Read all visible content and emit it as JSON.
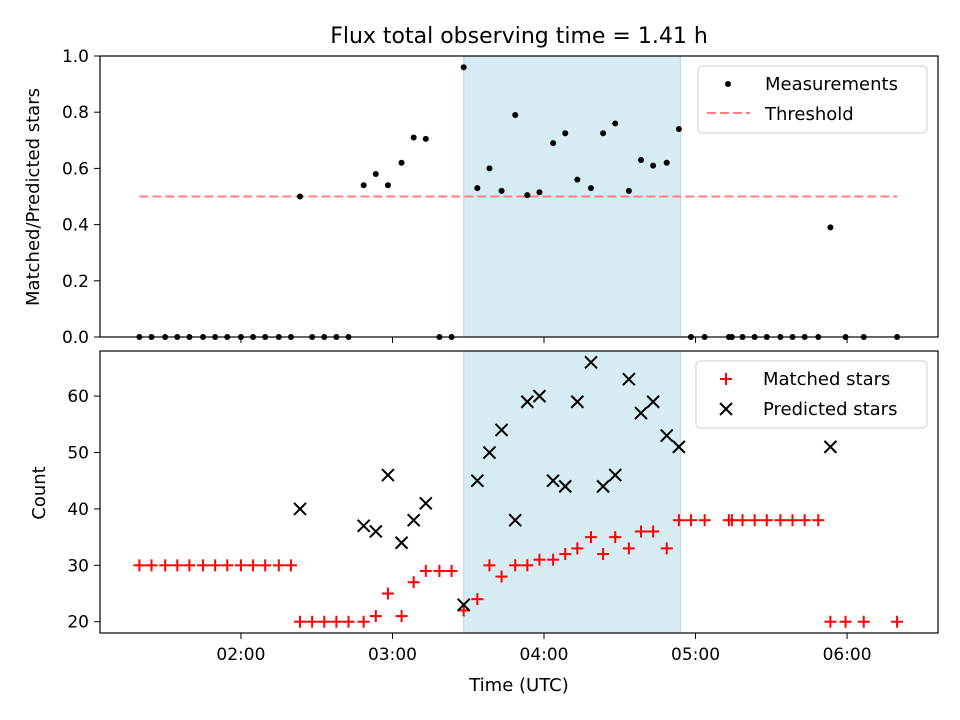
{
  "figure": {
    "title": "Flux total observing time = 1.41 h",
    "colors": {
      "measurement": "#000000",
      "threshold": "#ff7f7f",
      "matched": "#ff0000",
      "predicted": "#000000",
      "window_fill": "#add8e6"
    }
  },
  "chart_data": [
    {
      "type": "scatter",
      "title": "Flux total observing time = 1.41 h",
      "xlabel": "",
      "ylabel": "Matched/Predicted stars",
      "x_unit": "time (UTC, decimal hours)",
      "xlim": [
        1.07,
        6.6
      ],
      "ylim": [
        0,
        1.0
      ],
      "yticks": [
        0.0,
        0.2,
        0.4,
        0.6,
        0.8,
        1.0
      ],
      "ytick_labels": [
        "0.0",
        "0.2",
        "0.4",
        "0.6",
        "0.8",
        "1.0"
      ],
      "xticks": [
        2,
        3,
        4,
        5,
        6
      ],
      "xtick_labels": [
        "",
        "",
        "",
        "",
        ""
      ],
      "grid": false,
      "legend": "upper-right",
      "shaded_interval": [
        3.47,
        4.9
      ],
      "threshold": {
        "name": "Threshold",
        "style": "dashed",
        "x": [
          1.33,
          6.33
        ],
        "y": 0.5
      },
      "series": [
        {
          "name": "Measurements",
          "marker": "dot",
          "x": [
            1.33,
            1.41,
            1.5,
            1.58,
            1.66,
            1.75,
            1.83,
            1.91,
            2.0,
            2.08,
            2.16,
            2.25,
            2.33,
            2.39,
            2.47,
            2.55,
            2.63,
            2.71,
            2.81,
            2.89,
            2.97,
            3.06,
            3.14,
            3.22,
            3.31,
            3.39,
            3.47,
            3.56,
            3.64,
            3.72,
            3.81,
            3.89,
            3.97,
            4.06,
            4.14,
            4.22,
            4.31,
            4.39,
            4.47,
            4.56,
            4.64,
            4.72,
            4.81,
            4.89,
            4.97,
            5.06,
            5.22,
            5.24,
            5.31,
            5.39,
            5.47,
            5.56,
            5.64,
            5.72,
            5.81,
            5.89,
            5.99,
            6.11,
            6.33
          ],
          "y": [
            0,
            0,
            0,
            0,
            0,
            0,
            0,
            0,
            0,
            0,
            0,
            0,
            0,
            0.5,
            0,
            0,
            0,
            0,
            0.54,
            0.58,
            0.54,
            0.62,
            0.71,
            0.705,
            0,
            0,
            0.96,
            0.53,
            0.6,
            0.52,
            0.79,
            0.505,
            0.515,
            0.69,
            0.725,
            0.56,
            0.53,
            0.725,
            0.76,
            0.52,
            0.63,
            0.61,
            0.62,
            0.74,
            0,
            0,
            0,
            0,
            0,
            0,
            0,
            0,
            0,
            0,
            0,
            0.39,
            0,
            0,
            0
          ]
        }
      ]
    },
    {
      "type": "scatter",
      "xlabel": "Time (UTC)",
      "ylabel": "Count",
      "x_unit": "time (UTC, decimal hours)",
      "xlim": [
        1.07,
        6.6
      ],
      "ylim": [
        18,
        68
      ],
      "yticks": [
        20,
        30,
        40,
        50,
        60
      ],
      "ytick_labels": [
        "20",
        "30",
        "40",
        "50",
        "60"
      ],
      "xticks": [
        2,
        3,
        4,
        5,
        6
      ],
      "xtick_labels": [
        "02:00",
        "03:00",
        "04:00",
        "05:00",
        "06:00"
      ],
      "grid": false,
      "legend": "upper-right",
      "shaded_interval": [
        3.47,
        4.9
      ],
      "series": [
        {
          "name": "Matched stars",
          "marker": "plus",
          "x": [
            1.33,
            1.41,
            1.5,
            1.58,
            1.66,
            1.75,
            1.83,
            1.91,
            2.0,
            2.08,
            2.16,
            2.25,
            2.33,
            2.39,
            2.47,
            2.55,
            2.63,
            2.71,
            2.81,
            2.89,
            2.97,
            3.06,
            3.14,
            3.22,
            3.31,
            3.39,
            3.47,
            3.56,
            3.64,
            3.72,
            3.81,
            3.89,
            3.97,
            4.06,
            4.14,
            4.22,
            4.31,
            4.39,
            4.47,
            4.56,
            4.64,
            4.72,
            4.81,
            4.89,
            4.97,
            5.06,
            5.22,
            5.24,
            5.31,
            5.39,
            5.47,
            5.56,
            5.64,
            5.72,
            5.81,
            5.89,
            5.99,
            6.11,
            6.33
          ],
          "y": [
            30,
            30,
            30,
            30,
            30,
            30,
            30,
            30,
            30,
            30,
            30,
            30,
            30,
            20,
            20,
            20,
            20,
            20,
            20,
            21,
            25,
            21,
            27,
            29,
            29,
            29,
            22,
            24,
            30,
            28,
            30,
            30,
            31,
            31,
            32,
            33,
            35,
            32,
            35,
            33,
            36,
            36,
            33,
            38,
            38,
            38,
            38,
            38,
            38,
            38,
            38,
            38,
            38,
            38,
            38,
            20,
            20,
            20,
            20
          ]
        },
        {
          "name": "Predicted stars",
          "marker": "x",
          "x": [
            2.39,
            2.81,
            2.89,
            2.97,
            3.06,
            3.14,
            3.22,
            3.47,
            3.56,
            3.64,
            3.72,
            3.81,
            3.89,
            3.97,
            4.06,
            4.14,
            4.22,
            4.31,
            4.39,
            4.47,
            4.56,
            4.64,
            4.72,
            4.81,
            4.89,
            5.89
          ],
          "y": [
            40,
            37,
            36,
            46,
            34,
            38,
            41,
            23,
            45,
            50,
            54,
            38,
            59,
            60,
            45,
            44,
            59,
            66,
            44,
            46,
            63,
            57,
            59,
            53,
            51,
            51
          ]
        }
      ]
    }
  ]
}
